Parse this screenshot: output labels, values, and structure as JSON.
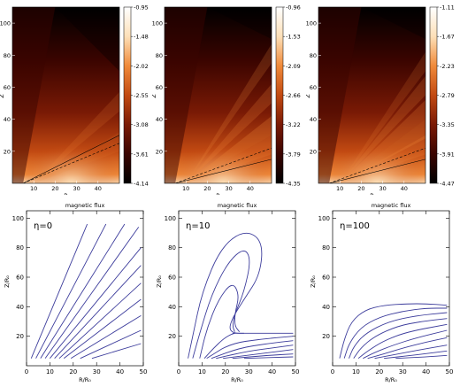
{
  "chart_data": [
    {
      "type": "heatmap",
      "xlabel": "R",
      "ylabel": "Z",
      "xlim": [
        0,
        50
      ],
      "ylim": [
        0,
        110
      ],
      "xticks": [
        "10",
        "20",
        "30",
        "40"
      ],
      "yticks": [
        "20",
        "40",
        "60",
        "80",
        "100"
      ],
      "colorbar": [
        "-0.95",
        "-1.48",
        "-2.02",
        "-2.55",
        "-3.08",
        "-3.61",
        "-4.14"
      ],
      "colormap": [
        "#000000",
        "#3a0400",
        "#7a1a05",
        "#c24a12",
        "#f08a3a",
        "#fde0b8",
        "#ffffff"
      ]
    },
    {
      "type": "heatmap",
      "xlabel": "R",
      "ylabel": "Z",
      "xlim": [
        0,
        50
      ],
      "ylim": [
        0,
        110
      ],
      "xticks": [
        "10",
        "20",
        "30",
        "40"
      ],
      "yticks": [
        "20",
        "40",
        "60",
        "80",
        "100"
      ],
      "colorbar": [
        "-0.96",
        "-1.53",
        "-2.09",
        "-2.66",
        "-3.22",
        "-3.79",
        "-4.35"
      ],
      "colormap": [
        "#000000",
        "#3a0400",
        "#7a1a05",
        "#c24a12",
        "#f08a3a",
        "#fde0b8",
        "#ffffff"
      ]
    },
    {
      "type": "heatmap",
      "xlabel": "R",
      "ylabel": "Z",
      "xlim": [
        0,
        50
      ],
      "ylim": [
        0,
        110
      ],
      "xticks": [
        "10",
        "20",
        "30",
        "40"
      ],
      "yticks": [
        "20",
        "40",
        "60",
        "80",
        "100"
      ],
      "colorbar": [
        "-1.11",
        "-1.67",
        "-2.23",
        "-2.79",
        "-3.35",
        "-3.91",
        "-4.47"
      ],
      "colormap": [
        "#000000",
        "#3a0400",
        "#7a1a05",
        "#c24a12",
        "#f08a3a",
        "#fde0b8",
        "#ffffff"
      ]
    },
    {
      "type": "line",
      "title": "magnetic flux",
      "annotation": "η=0",
      "xlabel": "R/R₀",
      "ylabel": "Z/R₀",
      "xlim": [
        0,
        50
      ],
      "ylim": [
        0,
        105
      ],
      "xticks": [
        0,
        10,
        20,
        30,
        40,
        50
      ],
      "yticks": [
        20,
        40,
        60,
        80,
        100
      ],
      "line_color": "#3d3d9c",
      "series": [
        {
          "x": [
            2,
            26
          ],
          "y": [
            5,
            96
          ]
        },
        {
          "x": [
            4,
            34
          ],
          "y": [
            5,
            96
          ]
        },
        {
          "x": [
            6,
            42
          ],
          "y": [
            5,
            96
          ]
        },
        {
          "x": [
            8,
            48
          ],
          "y": [
            5,
            94
          ]
        },
        {
          "x": [
            10,
            49
          ],
          "y": [
            5,
            80
          ]
        },
        {
          "x": [
            12,
            49
          ],
          "y": [
            5,
            68
          ]
        },
        {
          "x": [
            14,
            49
          ],
          "y": [
            5,
            56
          ]
        },
        {
          "x": [
            16,
            49
          ],
          "y": [
            5,
            45
          ]
        },
        {
          "x": [
            19,
            49
          ],
          "y": [
            5,
            34
          ]
        },
        {
          "x": [
            23,
            49
          ],
          "y": [
            5,
            24
          ]
        },
        {
          "x": [
            28,
            49
          ],
          "y": [
            5,
            15
          ]
        }
      ]
    },
    {
      "type": "line",
      "title": "magnetic flux",
      "annotation": "η=10",
      "xlabel": "R/R₀",
      "ylabel": "Z/R₀",
      "xlim": [
        0,
        50
      ],
      "ylim": [
        0,
        105
      ],
      "xticks": [
        0,
        10,
        20,
        30,
        40,
        50
      ],
      "yticks": [
        20,
        40,
        60,
        80,
        100
      ],
      "line_color": "#3d3d9c",
      "series": [
        {
          "x": [
            4,
            6,
            10,
            18,
            28,
            36,
            35,
            28,
            24,
            22,
            22,
            24,
            28
          ],
          "y": [
            5,
            20,
            50,
            80,
            92,
            85,
            62,
            45,
            35,
            28,
            24,
            22,
            22
          ]
        },
        {
          "x": [
            6,
            9,
            14,
            21,
            28,
            31,
            28,
            24,
            23,
            24
          ],
          "y": [
            5,
            22,
            48,
            70,
            80,
            72,
            50,
            35,
            27,
            23
          ]
        },
        {
          "x": [
            9,
            12,
            17,
            23,
            26,
            24,
            24,
            26
          ],
          "y": [
            5,
            25,
            45,
            57,
            48,
            35,
            27,
            23
          ]
        },
        {
          "x": [
            23,
            30,
            40,
            49
          ],
          "y": [
            22,
            22,
            22,
            22
          ]
        },
        {
          "x": [
            11,
            15,
            19,
            22,
            24
          ],
          "y": [
            5,
            12,
            18,
            21,
            22
          ]
        },
        {
          "x": [
            12,
            22,
            35,
            49
          ],
          "y": [
            5,
            15,
            18,
            20
          ]
        },
        {
          "x": [
            14,
            26,
            38,
            49
          ],
          "y": [
            5,
            12,
            15,
            17
          ]
        },
        {
          "x": [
            16,
            30,
            40,
            49
          ],
          "y": [
            5,
            10,
            12,
            14
          ]
        },
        {
          "x": [
            19,
            34,
            49
          ],
          "y": [
            5,
            8,
            11
          ]
        },
        {
          "x": [
            23,
            38,
            49
          ],
          "y": [
            5,
            7,
            8
          ]
        },
        {
          "x": [
            28,
            49
          ],
          "y": [
            5,
            6
          ]
        }
      ]
    },
    {
      "type": "line",
      "title": "magnetic flux",
      "annotation": "η=100",
      "xlabel": "R/R₀",
      "ylabel": "Z/R₀",
      "xlim": [
        0,
        50
      ],
      "ylim": [
        0,
        105
      ],
      "xticks": [
        0,
        10,
        20,
        30,
        40,
        50
      ],
      "yticks": [
        20,
        40,
        60,
        80,
        100
      ],
      "line_color": "#3d3d9c",
      "series": [
        {
          "x": [
            3,
            5,
            8,
            14,
            22,
            32,
            40,
            49
          ],
          "y": [
            5,
            18,
            30,
            38,
            41,
            42,
            42,
            41
          ]
        },
        {
          "x": [
            5,
            7,
            12,
            20,
            30,
            40,
            49
          ],
          "y": [
            5,
            15,
            26,
            33,
            37,
            39,
            39
          ]
        },
        {
          "x": [
            7,
            9,
            14,
            24,
            36,
            49
          ],
          "y": [
            5,
            13,
            22,
            30,
            34,
            36
          ]
        },
        {
          "x": [
            9,
            12,
            18,
            28,
            38,
            49
          ],
          "y": [
            5,
            12,
            20,
            27,
            30,
            32
          ]
        },
        {
          "x": [
            11,
            15,
            22,
            32,
            49
          ],
          "y": [
            5,
            10,
            17,
            23,
            28
          ]
        },
        {
          "x": [
            13,
            18,
            26,
            36,
            49
          ],
          "y": [
            5,
            9,
            14,
            19,
            24
          ]
        },
        {
          "x": [
            15,
            22,
            30,
            40,
            49
          ],
          "y": [
            5,
            8,
            12,
            16,
            19
          ]
        },
        {
          "x": [
            18,
            28,
            38,
            49
          ],
          "y": [
            5,
            8,
            11,
            14
          ]
        },
        {
          "x": [
            22,
            34,
            49
          ],
          "y": [
            5,
            7,
            10
          ]
        },
        {
          "x": [
            27,
            40,
            49
          ],
          "y": [
            5,
            6,
            7
          ]
        }
      ]
    }
  ]
}
